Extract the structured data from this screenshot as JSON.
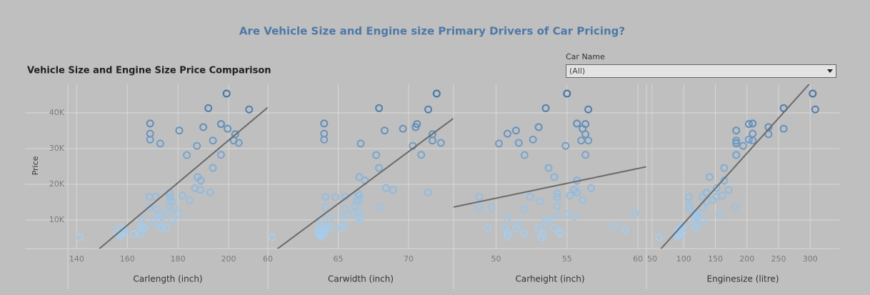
{
  "header": {
    "title": "Are Vehicle Size and Engine size Primary Drivers of Car Pricing?",
    "subtitle": "Vehicle Size and Engine Size Price Comparison",
    "filter_label": "Car Name",
    "filter_value": "(All)"
  },
  "color_scale": [
    "#a9cfee",
    "#3b6b9c"
  ],
  "chart_data": [
    {
      "type": "scatter",
      "ylabel": "Price",
      "xlabel": "Carlength (inch)",
      "xlim": [
        136.5,
        215.5
      ],
      "xticks": [
        140,
        160,
        180,
        200
      ],
      "ylim": [
        2000,
        48000
      ],
      "yticks": [
        {
          "value": 10000,
          "label": "10K"
        },
        {
          "value": 20000,
          "label": "20K"
        },
        {
          "value": 30000,
          "label": "30K"
        },
        {
          "value": 40000,
          "label": "40K"
        }
      ],
      "trendline": true,
      "x": [
        169.0,
        169.0,
        169.0,
        173.0,
        180.5,
        190.0,
        192.0,
        197.0,
        199.2,
        199.6,
        202.6,
        202.0,
        204.0,
        208.1,
        187.5,
        193.8,
        168.8,
        168.8,
        171.2,
        176.6,
        176.6,
        177.3,
        192.7,
        176.8,
        189.0,
        189.0,
        193.8,
        197.0,
        141.1,
        155.9,
        158.7,
        157.3,
        157.3,
        157.3,
        165.3,
        165.3,
        166.8,
        172.4,
        173.6,
        175.4,
        170.2,
        178.5,
        183.5,
        187.8,
        165.6,
        188.8,
        184.6,
        180.3,
        166.3,
        162.4,
        158.8,
        172.0,
        175.6,
        177.8,
        186.7,
        181.7,
        173.4,
        171.7
      ],
      "values": [
        37028,
        34184,
        32528,
        31400,
        35056,
        36000,
        41315,
        36880,
        45400,
        35550,
        34028,
        32250,
        31600,
        40960,
        30760,
        32250,
        13495,
        16500,
        16500,
        13950,
        17450,
        15250,
        17710,
        16430,
        20970,
        21105,
        24565,
        28248,
        5151,
        6295,
        6575,
        5572,
        6377,
        7957,
        6229,
        8249,
        7603,
        8845,
        10945,
        7775,
        9495,
        13499,
        28176,
        22018,
        10595,
        18420,
        15580,
        11694,
        7898,
        6095,
        7295,
        11245,
        11900,
        9980,
        18950,
        16845,
        7799,
        12964
      ]
    },
    {
      "type": "scatter",
      "xlabel": "Carwidth (inch)",
      "xlim": [
        60,
        73.2
      ],
      "xticks": [
        60,
        65,
        70
      ],
      "ylim": [
        2000,
        48000
      ],
      "yticks": [
        10000,
        20000,
        30000,
        40000
      ],
      "trendline": true,
      "x": [
        64.0,
        64.0,
        64.0,
        66.6,
        68.3,
        70.5,
        67.9,
        70.6,
        72.0,
        69.6,
        71.7,
        71.7,
        72.3,
        71.4,
        70.3,
        71.7,
        64.1,
        64.1,
        65.5,
        66.2,
        66.4,
        66.3,
        71.4,
        64.8,
        66.9,
        66.9,
        67.9,
        70.9,
        60.3,
        63.6,
        63.6,
        63.8,
        63.8,
        63.8,
        64.0,
        64.0,
        64.2,
        65.4,
        66.5,
        65.2,
        63.8,
        67.9,
        67.7,
        66.5,
        64.4,
        68.9,
        66.5,
        66.1,
        64.4,
        63.8,
        63.6,
        65.4,
        66.5,
        66.5,
        68.4,
        66.5,
        65.2,
        65.5
      ],
      "values": [
        37028,
        34184,
        32528,
        31400,
        35056,
        36000,
        41315,
        36880,
        45400,
        35550,
        34028,
        32250,
        31600,
        40960,
        30760,
        32250,
        13495,
        16500,
        16500,
        13950,
        17450,
        15250,
        17710,
        16430,
        20970,
        21105,
        24565,
        28248,
        5151,
        6295,
        6575,
        5572,
        6377,
        7957,
        6229,
        8249,
        7603,
        8845,
        10945,
        7775,
        9495,
        13499,
        28176,
        22018,
        10595,
        18420,
        15580,
        11694,
        7898,
        6095,
        7295,
        11245,
        11900,
        9980,
        18950,
        16845,
        7799,
        12964
      ]
    },
    {
      "type": "scatter",
      "xlabel": "Carheight (inch)",
      "xlim": [
        47,
        60.6
      ],
      "xticks": [
        50,
        55,
        60
      ],
      "ylim": [
        2000,
        48000
      ],
      "yticks": [
        10000,
        20000,
        30000,
        40000
      ],
      "trendline": true,
      "x": [
        55.7,
        50.8,
        52.6,
        50.2,
        51.4,
        53.0,
        53.5,
        56.3,
        55.0,
        56.1,
        56.3,
        56.0,
        51.6,
        56.5,
        54.9,
        56.5,
        48.8,
        48.8,
        52.4,
        54.3,
        54.3,
        53.1,
        55.7,
        54.3,
        55.7,
        55.7,
        53.7,
        56.3,
        53.2,
        52.0,
        54.5,
        50.8,
        50.8,
        50.6,
        54.5,
        58.3,
        51.4,
        51.6,
        55.5,
        54.1,
        53.5,
        49.7,
        52.0,
        54.1,
        50.8,
        55.5,
        56.1,
        55.1,
        53.0,
        53.3,
        59.1,
        54.3,
        59.8,
        53.7,
        56.7,
        55.2,
        49.4,
        52.0
      ],
      "values": [
        37028,
        34184,
        32528,
        31400,
        35056,
        36000,
        41315,
        36880,
        45400,
        35550,
        34028,
        32250,
        31600,
        40960,
        30760,
        32250,
        13495,
        16500,
        16500,
        13950,
        17450,
        15250,
        17710,
        16430,
        20970,
        21105,
        24565,
        28248,
        5151,
        6295,
        6575,
        5572,
        6377,
        7957,
        6229,
        8249,
        7603,
        8845,
        10945,
        7775,
        9495,
        13499,
        28176,
        22018,
        10595,
        18420,
        15580,
        11694,
        7898,
        6095,
        7295,
        11245,
        11900,
        9980,
        18950,
        16845,
        7799,
        12964
      ]
    },
    {
      "type": "scatter",
      "xlabel": "Enginesize (litre)",
      "xlim": [
        41,
        346
      ],
      "xticks": [
        50,
        100,
        150,
        200,
        250,
        300
      ],
      "ylim": [
        2000,
        48000
      ],
      "yticks": [
        10000,
        20000,
        30000,
        40000
      ],
      "trendline": true,
      "x": [
        209,
        209,
        203,
        183,
        183,
        234,
        258,
        203,
        304,
        258,
        234,
        183,
        183,
        308,
        194,
        209,
        130,
        130,
        152,
        109,
        136,
        136,
        136,
        108,
        164,
        164,
        164,
        183,
        61,
        90,
        90,
        90,
        90,
        98,
        97,
        97,
        97,
        122,
        122,
        119,
        109,
        181,
        183,
        141,
        121,
        171,
        146,
        156,
        98,
        92,
        92,
        120,
        120,
        130,
        152,
        161,
        97,
        110
      ],
      "values": [
        37028,
        34184,
        32528,
        31400,
        35056,
        36000,
        41315,
        36880,
        45400,
        35550,
        34028,
        32250,
        31600,
        40960,
        30760,
        32250,
        13495,
        16500,
        16500,
        13950,
        17450,
        15250,
        17710,
        16430,
        20970,
        21105,
        24565,
        28248,
        5151,
        6295,
        6575,
        5572,
        6377,
        7957,
        6229,
        8249,
        7603,
        8845,
        10945,
        7775,
        9495,
        13499,
        28176,
        22018,
        10595,
        18420,
        15580,
        11694,
        7898,
        6095,
        7295,
        11245,
        11900,
        9980,
        18950,
        16845,
        7799,
        12964
      ]
    }
  ]
}
